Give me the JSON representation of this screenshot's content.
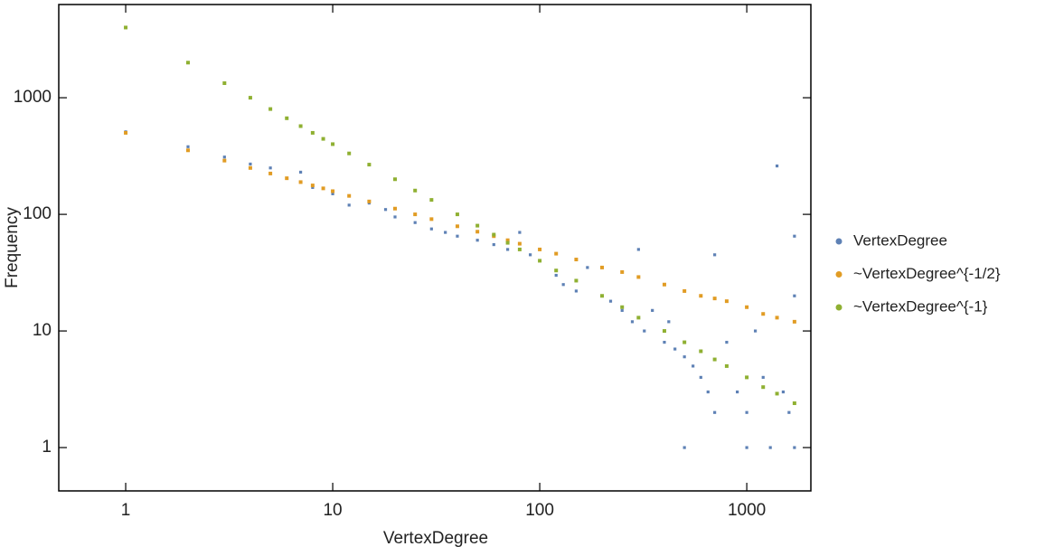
{
  "chart_data": {
    "type": "scatter",
    "log_x": true,
    "log_y": true,
    "x_label": "VertexDegree",
    "y_label": "Frequency",
    "xlim": [
      0.475,
      2040
    ],
    "ylim": [
      0.425,
      6300
    ],
    "xticks": [
      1,
      10,
      100,
      1000
    ],
    "yticks": [
      1,
      10,
      100,
      1000
    ],
    "legend": "right",
    "series": [
      {
        "name": "VertexDegree",
        "color": "#5e81b5",
        "x": [
          1,
          2,
          3,
          4,
          5,
          7,
          8,
          10,
          12,
          15,
          18,
          20,
          25,
          30,
          35,
          40,
          50,
          60,
          70,
          80,
          90,
          100,
          120,
          130,
          150,
          170,
          200,
          220,
          250,
          280,
          300,
          320,
          350,
          400,
          420,
          450,
          500,
          500,
          550,
          600,
          650,
          700,
          700,
          800,
          900,
          1000,
          1000,
          1100,
          1200,
          1300,
          1400,
          1500,
          1600,
          1700,
          1700,
          1700
        ],
        "values": [
          510,
          380,
          310,
          270,
          250,
          230,
          170,
          150,
          120,
          125,
          110,
          95,
          85,
          75,
          70,
          65,
          60,
          55,
          50,
          70,
          45,
          40,
          30,
          25,
          22,
          35,
          20,
          18,
          15,
          12,
          50,
          10,
          15,
          8,
          12,
          7,
          6,
          1,
          5,
          4,
          3,
          45,
          2,
          8,
          3,
          2,
          1,
          10,
          4,
          1,
          260,
          3,
          2,
          65,
          20,
          1
        ]
      },
      {
        "name": "~VertexDegree^{-1/2}",
        "color": "#e19c24",
        "x": [
          1,
          2,
          3,
          4,
          5,
          6,
          7,
          8,
          9,
          10,
          12,
          15,
          20,
          25,
          30,
          40,
          50,
          60,
          70,
          80,
          100,
          120,
          150,
          200,
          250,
          300,
          400,
          500,
          600,
          700,
          800,
          1000,
          1200,
          1400,
          1700
        ],
        "values": [
          500,
          354,
          289,
          250,
          224,
          204,
          189,
          177,
          167,
          158,
          144,
          129,
          112,
          100,
          91,
          79,
          71,
          65,
          60,
          56,
          50,
          46,
          41,
          35,
          32,
          29,
          25,
          22,
          20,
          19,
          18,
          16,
          14,
          13,
          12
        ]
      },
      {
        "name": "~VertexDegree^{-1}",
        "color": "#8fb032",
        "x": [
          1,
          2,
          3,
          4,
          5,
          6,
          7,
          8,
          9,
          10,
          12,
          15,
          20,
          25,
          30,
          40,
          50,
          60,
          70,
          80,
          100,
          120,
          150,
          200,
          250,
          300,
          400,
          500,
          600,
          700,
          800,
          1000,
          1200,
          1400,
          1700
        ],
        "values": [
          4000,
          2000,
          1333,
          1000,
          800,
          667,
          571,
          500,
          444,
          400,
          333,
          267,
          200,
          160,
          133,
          100,
          80,
          67,
          57,
          50,
          40,
          33,
          27,
          20,
          16,
          13,
          10,
          8,
          6.7,
          5.7,
          5,
          4,
          3.3,
          2.9,
          2.4
        ]
      }
    ]
  }
}
